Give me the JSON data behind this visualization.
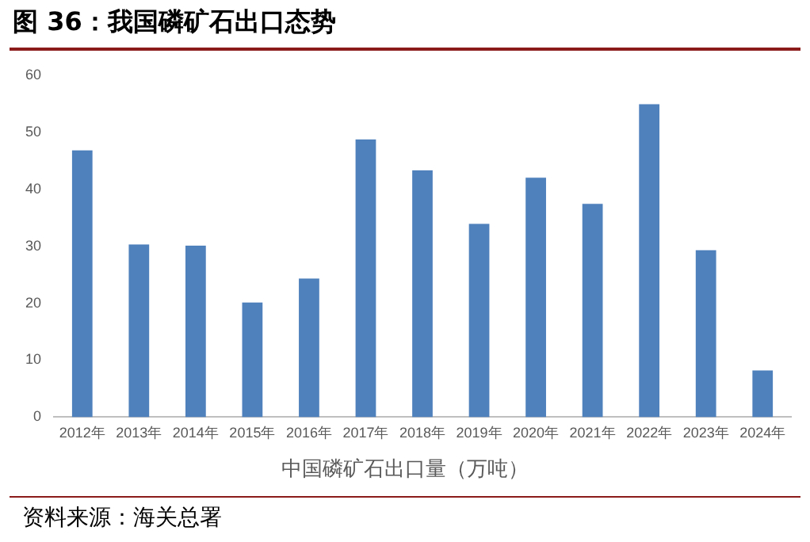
{
  "chart_data": {
    "type": "bar",
    "title": "图 36：我国磷矿石出口态势",
    "xlabel": "中国磷矿石出口量（万吨）",
    "categories": [
      "2012年",
      "2013年",
      "2014年",
      "2015年",
      "2016年",
      "2017年",
      "2018年",
      "2019年",
      "2020年",
      "2021年",
      "2022年",
      "2023年",
      "2024年"
    ],
    "values": [
      46.8,
      30.3,
      30.1,
      20.1,
      24.3,
      48.7,
      43.3,
      33.9,
      42.0,
      37.4,
      54.9,
      29.3,
      8.2
    ],
    "color": "#4f81bd",
    "ylim": [
      0,
      60
    ],
    "yticks": [
      0,
      10,
      20,
      30,
      40,
      50,
      60
    ],
    "grid": false,
    "legend": false,
    "annotations": [
      "资料来源：海关总署"
    ]
  }
}
